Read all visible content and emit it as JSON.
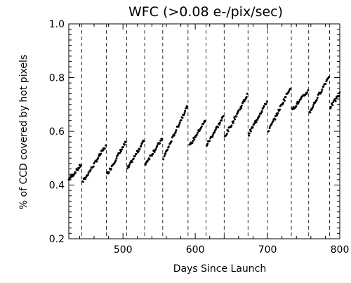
{
  "chart_data": {
    "type": "scatter",
    "title": "WFC (>0.08 e-/pix/sec)",
    "xlabel": "Days Since Launch",
    "ylabel": "% of CCD  covered by hot pixels",
    "xlim": [
      425,
      800
    ],
    "ylim": [
      0.2,
      1.0
    ],
    "x_ticks": [
      500,
      600,
      700,
      800
    ],
    "x_tick_labels": [
      "500",
      "600",
      "700",
      "800"
    ],
    "y_ticks": [
      0.2,
      0.4,
      0.6,
      0.8,
      1.0
    ],
    "y_tick_labels": [
      "0.2",
      "0.4",
      "0.6",
      "0.8",
      "1.0"
    ],
    "grid": false,
    "marker_color": "#000000",
    "vertical_dashed_lines_x": [
      443,
      477,
      505,
      530,
      555,
      590,
      615,
      640,
      673,
      700,
      733,
      757,
      786
    ],
    "segments": [
      {
        "x_start": 425,
        "x_end": 442,
        "y_start": 0.42,
        "y_end": 0.475
      },
      {
        "x_start": 444,
        "x_end": 476,
        "y_start": 0.41,
        "y_end": 0.545
      },
      {
        "x_start": 478,
        "x_end": 504,
        "y_start": 0.44,
        "y_end": 0.56
      },
      {
        "x_start": 506,
        "x_end": 529,
        "y_start": 0.46,
        "y_end": 0.565
      },
      {
        "x_start": 531,
        "x_end": 554,
        "y_start": 0.48,
        "y_end": 0.57
      },
      {
        "x_start": 556,
        "x_end": 589,
        "y_start": 0.5,
        "y_end": 0.695
      },
      {
        "x_start": 592,
        "x_end": 614,
        "y_start": 0.545,
        "y_end": 0.64
      },
      {
        "x_start": 616,
        "x_end": 639,
        "y_start": 0.55,
        "y_end": 0.655
      },
      {
        "x_start": 641,
        "x_end": 672,
        "y_start": 0.58,
        "y_end": 0.735
      },
      {
        "x_start": 674,
        "x_end": 699,
        "y_start": 0.59,
        "y_end": 0.71
      },
      {
        "x_start": 701,
        "x_end": 732,
        "y_start": 0.6,
        "y_end": 0.765
      },
      {
        "x_start": 734,
        "x_end": 756,
        "y_start": 0.68,
        "y_end": 0.75
      },
      {
        "x_start": 758,
        "x_end": 785,
        "y_start": 0.67,
        "y_end": 0.805
      },
      {
        "x_start": 787,
        "x_end": 800,
        "y_start": 0.69,
        "y_end": 0.74
      }
    ]
  }
}
